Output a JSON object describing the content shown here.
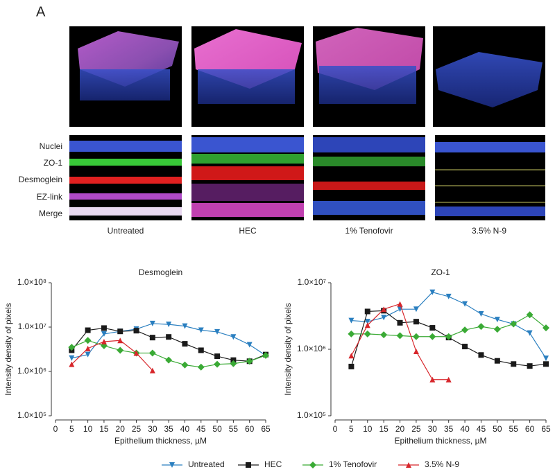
{
  "panel_label": "A",
  "channels": [
    "Nuclei",
    "ZO-1",
    "Desmoglein",
    "EZ-link",
    "Merge"
  ],
  "conditions": [
    "Untreated",
    "HEC",
    "1% Tenofovir",
    "3.5% N-9"
  ],
  "chart_data": [
    {
      "type": "line",
      "title": "Desmoglein",
      "x_label": "Epithelium thickness, µM",
      "y_label": "Intensity density of pixels",
      "log_y": true,
      "x": [
        5,
        10,
        15,
        20,
        25,
        30,
        35,
        40,
        45,
        50,
        55,
        60,
        65
      ],
      "xlim": [
        0,
        65
      ],
      "xticks": [
        0,
        5,
        10,
        15,
        20,
        25,
        30,
        35,
        40,
        45,
        50,
        55,
        60,
        65
      ],
      "ylim": [
        100000,
        100000000
      ],
      "yticks": [
        {
          "value": 100000,
          "label": "1.0×10⁵"
        },
        {
          "value": 1000000,
          "label": "1.0×10⁶"
        },
        {
          "value": 10000000,
          "label": "1.0×10⁷"
        },
        {
          "value": 100000000,
          "label": "1.0×10⁸"
        }
      ],
      "series": [
        {
          "name": "Untreated",
          "color": "#2a7fc0",
          "marker": "triangle-down",
          "values": [
            2000000,
            2400000,
            7000000,
            8000000,
            9000000,
            12000000,
            11500000,
            10500000,
            8500000,
            7800000,
            6000000,
            4000000,
            2300000
          ]
        },
        {
          "name": "HEC",
          "color": "#1a1a1a",
          "marker": "square",
          "values": [
            3000000,
            8500000,
            9500000,
            8000000,
            8300000,
            5800000,
            6000000,
            4200000,
            3000000,
            2200000,
            1800000,
            1700000,
            2400000
          ]
        },
        {
          "name": "1% Tenofovir",
          "color": "#3aaa35",
          "marker": "diamond",
          "values": [
            3500000,
            5000000,
            3800000,
            3000000,
            2600000,
            2600000,
            1800000,
            1400000,
            1250000,
            1450000,
            1500000,
            1700000,
            2300000
          ]
        },
        {
          "name": "3.5% N-9",
          "color": "#d7262b",
          "marker": "triangle-up",
          "values": [
            1450000,
            3300000,
            4700000,
            5000000,
            2600000,
            1050000,
            null,
            null,
            null,
            null,
            null,
            null,
            null
          ]
        }
      ]
    },
    {
      "type": "line",
      "title": "ZO-1",
      "x_label": "Epithelium thickness, µM",
      "y_label": "Intensity density of pixels",
      "log_y": true,
      "x": [
        5,
        10,
        15,
        20,
        25,
        30,
        35,
        40,
        45,
        50,
        55,
        60,
        65
      ],
      "xlim": [
        0,
        65
      ],
      "xticks": [
        0,
        5,
        10,
        15,
        20,
        25,
        30,
        35,
        40,
        45,
        50,
        55,
        60,
        65
      ],
      "ylim": [
        100000,
        10000000
      ],
      "yticks": [
        {
          "value": 100000,
          "label": "1.0×10⁵"
        },
        {
          "value": 1000000,
          "label": "1.0×10⁶"
        },
        {
          "value": 10000000,
          "label": "1.0×10⁷"
        }
      ],
      "series": [
        {
          "name": "Untreated",
          "color": "#2a7fc0",
          "marker": "triangle-down",
          "values": [
            2700000,
            2600000,
            3000000,
            4000000,
            4000000,
            7200000,
            6200000,
            4800000,
            3400000,
            2800000,
            2400000,
            1750000,
            730000
          ]
        },
        {
          "name": "HEC",
          "color": "#1a1a1a",
          "marker": "square",
          "values": [
            550000,
            3700000,
            3800000,
            2500000,
            2600000,
            2100000,
            1500000,
            1100000,
            820000,
            670000,
            600000,
            560000,
            600000
          ]
        },
        {
          "name": "1% Tenofovir",
          "color": "#3aaa35",
          "marker": "diamond",
          "values": [
            1700000,
            1700000,
            1650000,
            1600000,
            1550000,
            1550000,
            1550000,
            1950000,
            2200000,
            2000000,
            2400000,
            3300000,
            2100000
          ]
        },
        {
          "name": "3.5% N-9",
          "color": "#d7262b",
          "marker": "triangle-up",
          "values": [
            800000,
            2300000,
            4000000,
            4800000,
            930000,
            350000,
            350000,
            null,
            null,
            null,
            null,
            null,
            null
          ]
        }
      ]
    }
  ]
}
